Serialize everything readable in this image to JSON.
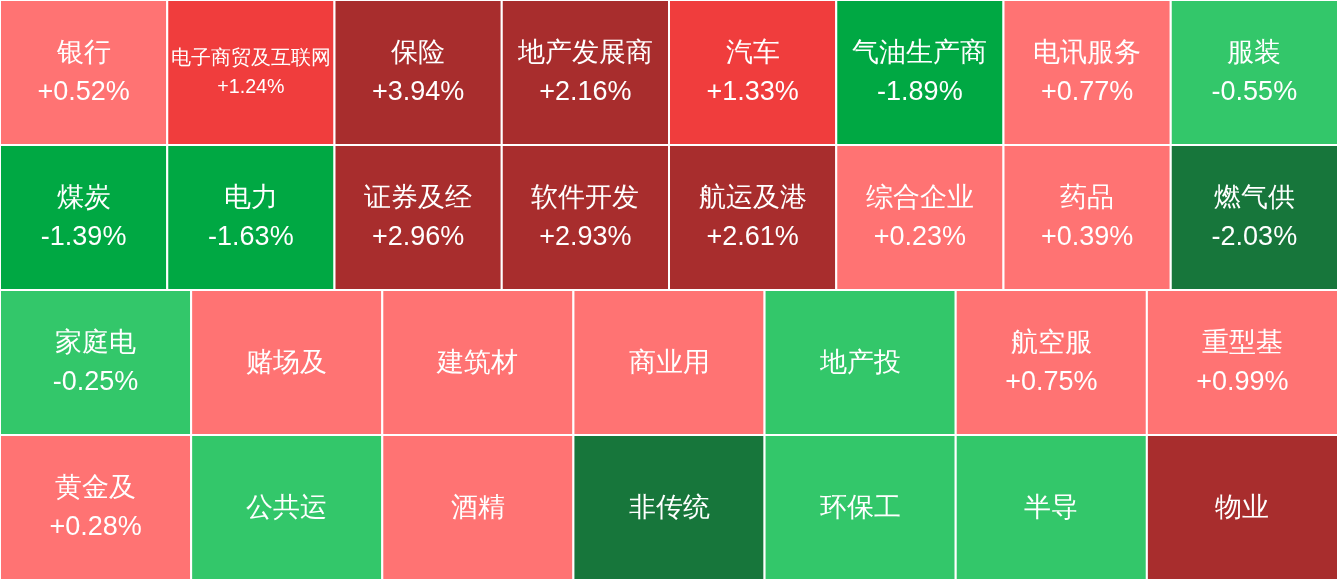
{
  "chart_data": {
    "type": "other",
    "categories": [
      "银行",
      "电子商贸及互联网",
      "保险",
      "地产发展商",
      "汽车",
      "气油生产商",
      "电讯服务",
      "服装",
      "煤炭",
      "电力",
      "证券及经",
      "软件开发",
      "航运及港",
      "综合企业",
      "药品",
      "燃气供",
      "家庭电",
      "赌场及",
      "建筑材",
      "商业用",
      "地产投",
      "航空服",
      "重型基",
      "黄金及",
      "公共运",
      "酒精",
      "非传统",
      "环保工",
      "半导",
      "物业"
    ],
    "values": [
      0.52,
      1.24,
      3.94,
      2.16,
      1.33,
      -1.89,
      0.77,
      -0.55,
      -1.39,
      -1.63,
      2.96,
      2.93,
      2.61,
      0.23,
      0.39,
      -2.03,
      -0.25,
      null,
      null,
      null,
      null,
      0.75,
      0.99,
      0.28,
      null,
      null,
      null,
      null,
      null,
      null
    ],
    "value_labels": [
      "+0.52%",
      "+1.24%",
      "+3.94%",
      "+2.16%",
      "+1.33%",
      "-1.89%",
      "+0.77%",
      "-0.55%",
      "-1.39%",
      "-1.63%",
      "+2.96%",
      "+2.93%",
      "+2.61%",
      "+0.23%",
      "+0.39%",
      "-2.03%",
      "-0.25%",
      null,
      null,
      null,
      null,
      "+0.75%",
      "+0.99%",
      "+0.28%",
      null,
      null,
      null,
      null,
      null,
      null
    ],
    "colors": [
      "#ff7373",
      "#f03d3d",
      "#a82d2d",
      "#a82d2d",
      "#f03d3d",
      "#00a843",
      "#ff7373",
      "#33c76a",
      "#00a843",
      "#00a843",
      "#a82d2d",
      "#a82d2d",
      "#a82d2d",
      "#ff7373",
      "#ff7373",
      "#17763b",
      "#33c76a",
      "#ff7373",
      "#ff7373",
      "#ff7373",
      "#33c76a",
      "#ff7373",
      "#ff7373",
      "#ff7373",
      "#33c76a",
      "#ff7373",
      "#17763b",
      "#33c76a",
      "#33c76a",
      "#a82d2d"
    ]
  }
}
